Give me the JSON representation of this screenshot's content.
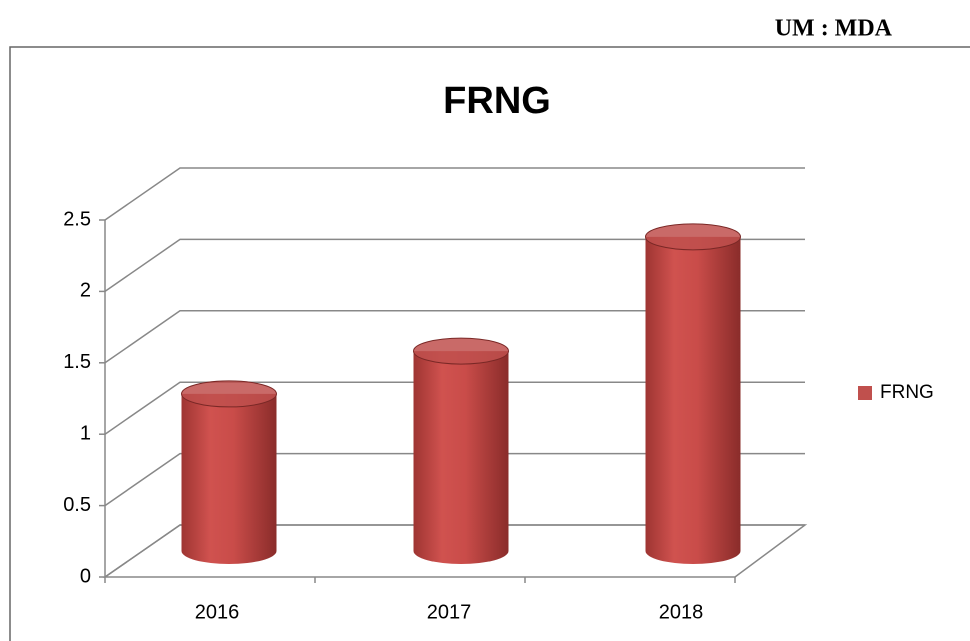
{
  "header": {
    "unit": "UM : MDA"
  },
  "chart_data": {
    "type": "bar3d-cylinder",
    "title": "FRNG",
    "categories": [
      "2016",
      "2017",
      "2018"
    ],
    "series": [
      {
        "name": "FRNG",
        "color": "#c0504d",
        "values": [
          1.1,
          1.4,
          2.2
        ]
      }
    ],
    "ylim": [
      0,
      2.5
    ],
    "yticks": [
      0,
      0.5,
      1,
      1.5,
      2,
      2.5
    ],
    "grid": true,
    "legend": "right"
  }
}
